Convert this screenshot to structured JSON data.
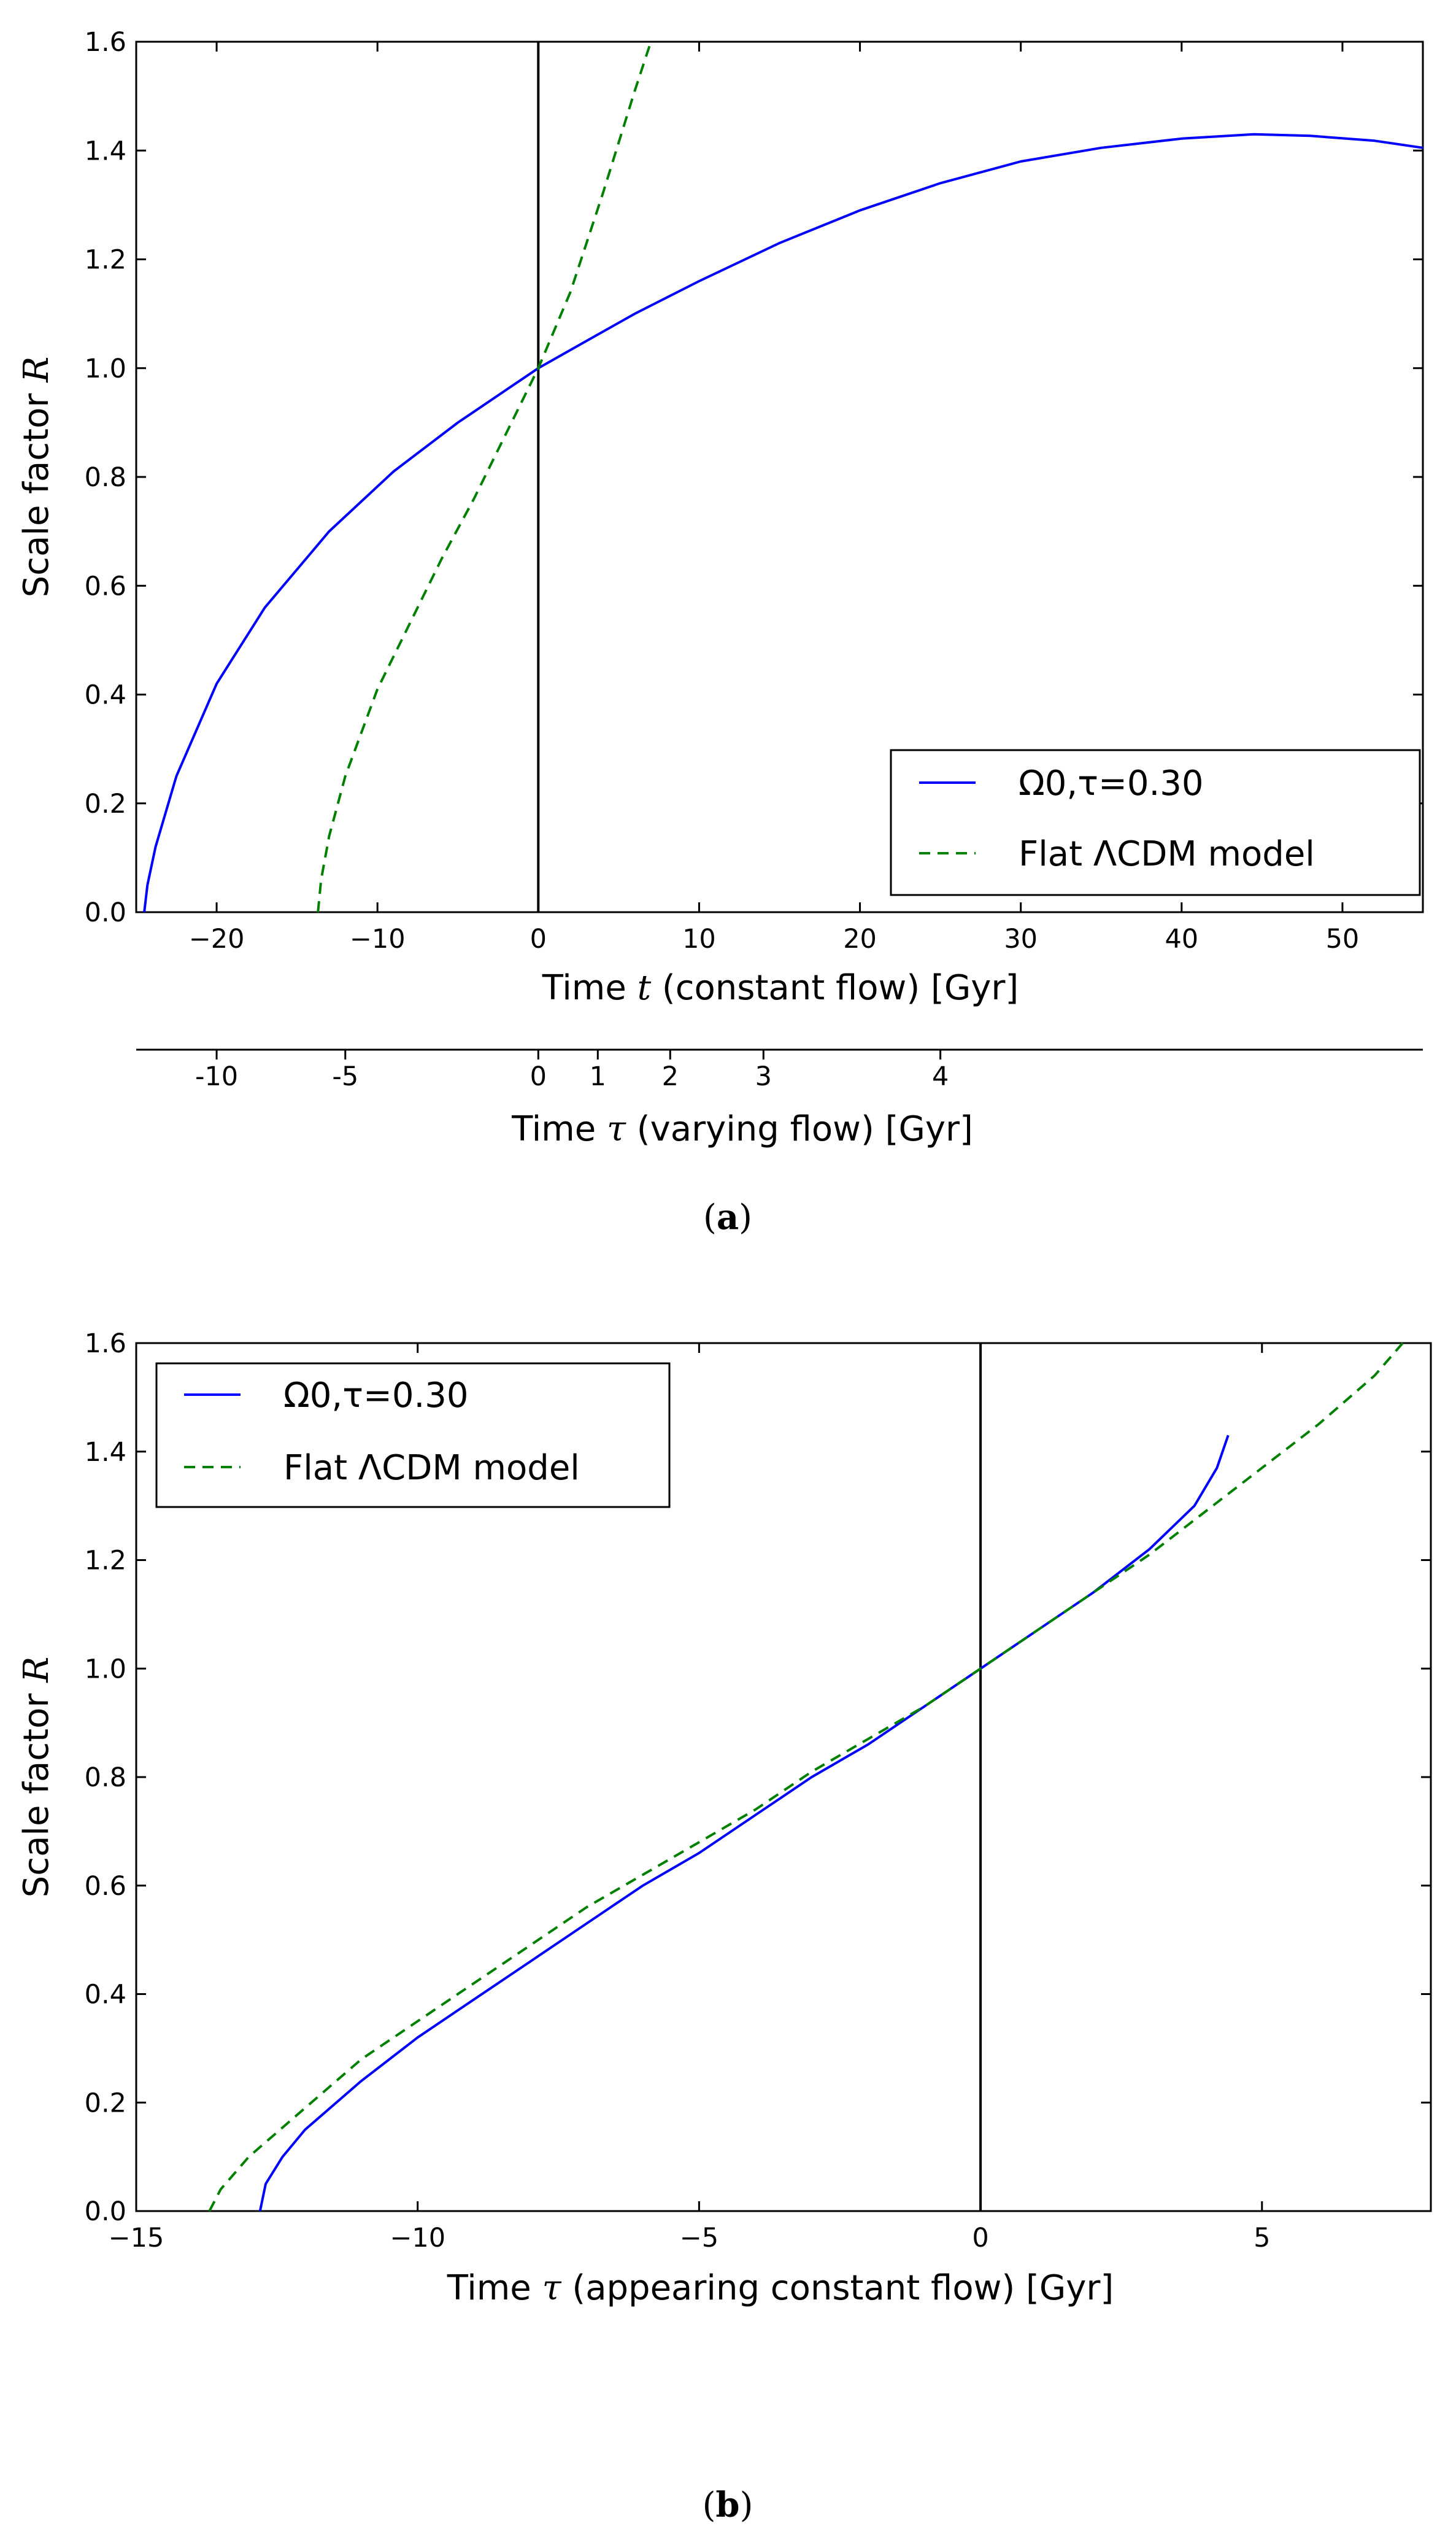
{
  "chart_data": [
    {
      "id": "a",
      "type": "line",
      "caption_letter": "a",
      "xlabel_prefix": "Time ",
      "xlabel_var": "t",
      "xlabel_suffix": " (constant flow) [Gyr]",
      "ylabel_prefix": "Scale factor ",
      "ylabel_var": "R",
      "xlim": [
        -25,
        55
      ],
      "ylim": [
        0,
        1.6
      ],
      "xticks": [
        -20,
        -10,
        0,
        10,
        20,
        30,
        40,
        50
      ],
      "xtick_labels": [
        "−20",
        "−10",
        "0",
        "10",
        "20",
        "30",
        "40",
        "50"
      ],
      "yticks": [
        0.0,
        0.2,
        0.4,
        0.6,
        0.8,
        1.0,
        1.2,
        1.4,
        1.6
      ],
      "ytick_labels": [
        "0.0",
        "0.2",
        "0.4",
        "0.6",
        "0.8",
        "1.0",
        "1.2",
        "1.4",
        "1.6"
      ],
      "vline_x": 0,
      "legend_position": "lower-right",
      "series": [
        {
          "name": "Ω0,τ=0.30",
          "style": "solid",
          "color": "#0000ff",
          "x": [
            -24.5,
            -24.3,
            -23.8,
            -22.5,
            -20,
            -17,
            -13,
            -9,
            -5,
            -2,
            0,
            3,
            6,
            10,
            15,
            20,
            25,
            30,
            35,
            40,
            44.5,
            48,
            52,
            55
          ],
          "y": [
            0.0,
            0.05,
            0.12,
            0.25,
            0.42,
            0.56,
            0.7,
            0.81,
            0.9,
            0.96,
            1.0,
            1.05,
            1.1,
            1.16,
            1.23,
            1.29,
            1.34,
            1.38,
            1.405,
            1.422,
            1.43,
            1.427,
            1.418,
            1.405
          ]
        },
        {
          "name": "Flat ΛCDM model",
          "style": "dashed",
          "color": "#008000",
          "x": [
            -13.7,
            -13.5,
            -13,
            -12,
            -10,
            -8,
            -6,
            -4,
            -2,
            0,
            2,
            4,
            6,
            7
          ],
          "y": [
            0.0,
            0.06,
            0.14,
            0.25,
            0.41,
            0.53,
            0.65,
            0.76,
            0.88,
            1.0,
            1.14,
            1.32,
            1.51,
            1.6
          ]
        }
      ],
      "secondary_axis": {
        "label_prefix": "Time ",
        "label_var": "τ",
        "label_suffix": " (varying flow) [Gyr]",
        "ticks": [
          {
            "label": "-10",
            "t_position": -20
          },
          {
            "label": "-5",
            "t_position": -12
          },
          {
            "label": "0",
            "t_position": 0
          },
          {
            "label": "1",
            "t_position": 3.7
          },
          {
            "label": "2",
            "t_position": 8.2
          },
          {
            "label": "3",
            "t_position": 14
          },
          {
            "label": "4",
            "t_position": 25
          }
        ]
      }
    },
    {
      "id": "b",
      "type": "line",
      "caption_letter": "b",
      "xlabel_prefix": "Time ",
      "xlabel_var": "τ",
      "xlabel_suffix": " (appearing constant flow) [Gyr]",
      "ylabel_prefix": "Scale factor ",
      "ylabel_var": "R",
      "xlim": [
        -15,
        8
      ],
      "ylim": [
        0,
        1.6
      ],
      "xticks": [
        -15,
        -10,
        -5,
        0,
        5
      ],
      "xtick_labels": [
        "−15",
        "−10",
        "−5",
        "0",
        "5"
      ],
      "yticks": [
        0.0,
        0.2,
        0.4,
        0.6,
        0.8,
        1.0,
        1.2,
        1.4,
        1.6
      ],
      "ytick_labels": [
        "0.0",
        "0.2",
        "0.4",
        "0.6",
        "0.8",
        "1.0",
        "1.2",
        "1.4",
        "1.6"
      ],
      "vline_x": 0,
      "legend_position": "upper-left",
      "series": [
        {
          "name": "Ω0,τ=0.30",
          "style": "solid",
          "color": "#0000ff",
          "x": [
            -12.8,
            -12.7,
            -12.4,
            -12,
            -11,
            -10,
            -9,
            -8,
            -7,
            -6,
            -5,
            -4,
            -3,
            -2,
            -1,
            0,
            1,
            2,
            3,
            3.8,
            4.2,
            4.4
          ],
          "y": [
            0.0,
            0.05,
            0.1,
            0.15,
            0.24,
            0.32,
            0.39,
            0.46,
            0.53,
            0.6,
            0.66,
            0.73,
            0.8,
            0.86,
            0.93,
            1.0,
            1.07,
            1.14,
            1.22,
            1.3,
            1.37,
            1.43
          ]
        },
        {
          "name": "Flat ΛCDM model",
          "style": "dashed",
          "color": "#008000",
          "x": [
            -13.7,
            -13.5,
            -13,
            -12,
            -11,
            -10,
            -9,
            -8,
            -7,
            -6,
            -5,
            -4,
            -3,
            -2,
            -1,
            0,
            1,
            2,
            3,
            4,
            5,
            6,
            7,
            7.5
          ],
          "y": [
            0.0,
            0.04,
            0.1,
            0.19,
            0.28,
            0.35,
            0.42,
            0.49,
            0.56,
            0.62,
            0.68,
            0.74,
            0.81,
            0.87,
            0.93,
            1.0,
            1.07,
            1.14,
            1.21,
            1.29,
            1.37,
            1.45,
            1.54,
            1.6
          ]
        }
      ]
    }
  ]
}
